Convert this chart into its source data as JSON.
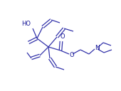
{
  "bg_color": "#ffffff",
  "line_color": "#3333aa",
  "text_color": "#1a1a99",
  "lw": 0.9,
  "figsize": [
    1.7,
    1.28
  ],
  "dpi": 100,
  "xlim": [
    0,
    170
  ],
  "ylim": [
    0,
    128
  ]
}
